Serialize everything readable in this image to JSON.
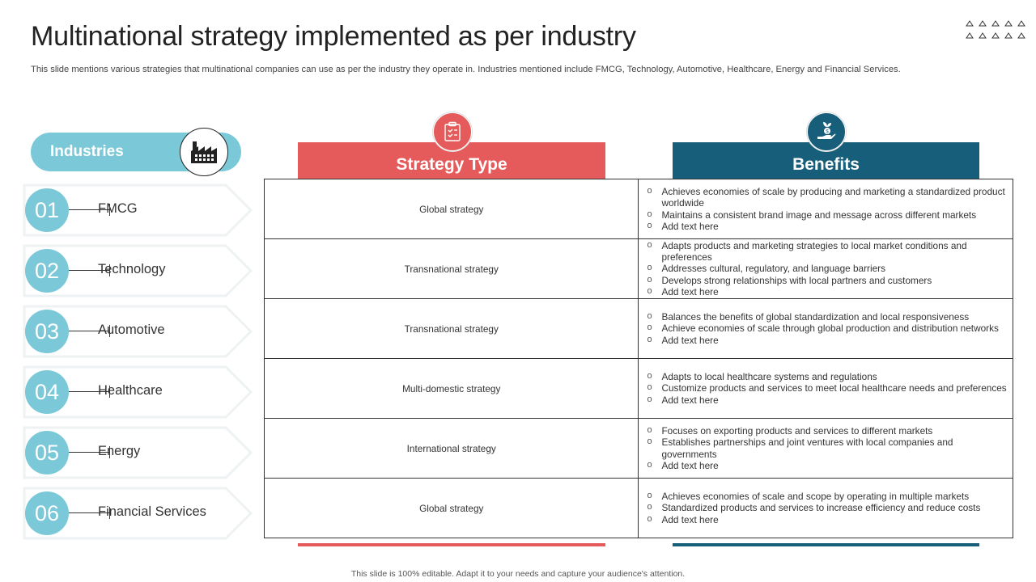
{
  "title": "Multinational strategy implemented as per industry",
  "subtitle": "This slide mentions various strategies that multinational companies can use as per the industry they operate in. Industries mentioned include FMCG, Technology, Automotive, Healthcare, Energy and Financial Services.",
  "industries_header": "Industries",
  "industries": [
    {
      "num": "01",
      "label": "FMCG"
    },
    {
      "num": "02",
      "label": "Technology"
    },
    {
      "num": "03",
      "label": "Automotive"
    },
    {
      "num": "04",
      "label": "Healthcare"
    },
    {
      "num": "05",
      "label": "Energy"
    },
    {
      "num": "06",
      "label": "Financial Services"
    }
  ],
  "columns": {
    "strategy": "Strategy Type",
    "benefits": "Benefits"
  },
  "rows": [
    {
      "strategy": "Global strategy",
      "benefits": [
        "Achieves economies of scale by producing and marketing a standardized product worldwide",
        "Maintains a consistent brand image and message across different markets",
        "Add text here"
      ]
    },
    {
      "strategy": "Transnational strategy",
      "benefits": [
        "Adapts products and marketing strategies to local market conditions and preferences",
        "Addresses cultural, regulatory, and language barriers",
        "Develops strong relationships with local partners and customers",
        "Add text here"
      ]
    },
    {
      "strategy": "Transnational strategy",
      "benefits": [
        "Balances the benefits of global standardization and local responsiveness",
        "Achieve economies of scale through global production and distribution networks",
        "Add text here"
      ]
    },
    {
      "strategy": "Multi-domestic strategy",
      "benefits": [
        "Adapts to local healthcare systems and regulations",
        "Customize products and services to meet local healthcare needs and preferences",
        "Add text here"
      ]
    },
    {
      "strategy": "International strategy",
      "benefits": [
        "Focuses on exporting products and services to different markets",
        "Establishes partnerships and joint ventures with local companies and governments",
        "Add text here"
      ]
    },
    {
      "strategy": "Global strategy",
      "benefits": [
        "Achieves economies of scale and scope by operating in multiple markets",
        "Standardized products and services to increase efficiency and reduce costs",
        "Add text here"
      ]
    }
  ],
  "footer": "This slide is 100% editable. Adapt it to your needs and capture your audience's attention.",
  "colors": {
    "teal": "#7bc9d8",
    "red": "#e55a5a",
    "navy": "#175e7a"
  },
  "icons": {
    "industries": "factory-icon",
    "strategy": "clipboard-icon",
    "benefits": "hand-plant-coin-icon",
    "decor": "triangle-grid-icon"
  }
}
